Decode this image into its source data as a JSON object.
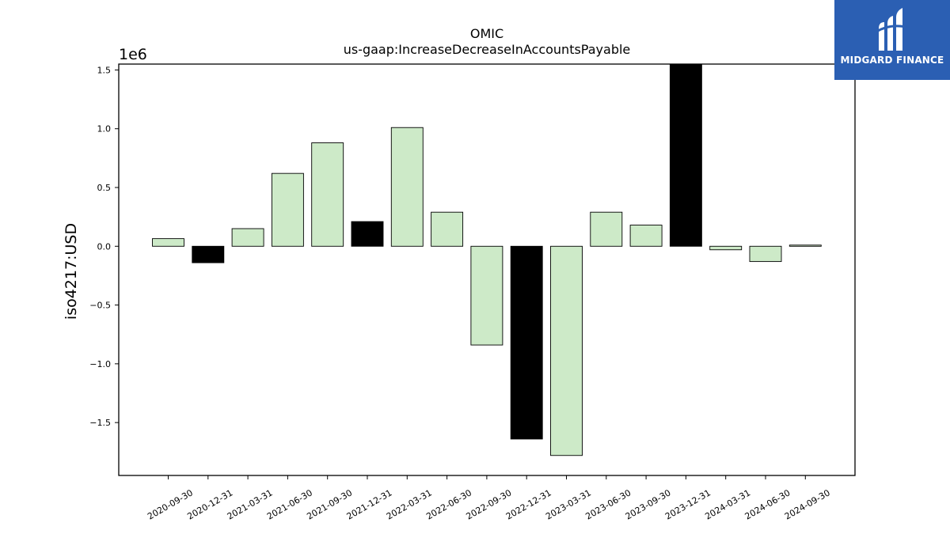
{
  "chart_data": {
    "type": "bar",
    "title": "OMIC",
    "subtitle": "us-gaap:IncreaseDecreaseInAccountsPayable",
    "ylabel": "iso4217:USD",
    "xlabel": "",
    "offset_label": "1e6",
    "ylim": [
      -1.95,
      1.55
    ],
    "yticks": [
      -1.5,
      -1.0,
      -0.5,
      0.0,
      0.5,
      1.0,
      1.5
    ],
    "ytick_labels": [
      "−1.5",
      "−1.0",
      "−0.5",
      "0.0",
      "0.5",
      "1.0",
      "1.5"
    ],
    "categories": [
      "2020-09-30",
      "2020-12-31",
      "2021-03-31",
      "2021-06-30",
      "2021-09-30",
      "2021-12-31",
      "2022-03-31",
      "2022-06-30",
      "2022-09-30",
      "2022-12-31",
      "2023-03-31",
      "2023-06-30",
      "2023-09-30",
      "2023-12-31",
      "2024-03-31",
      "2024-06-30",
      "2024-09-30"
    ],
    "values": [
      0.065,
      -0.14,
      0.15,
      0.62,
      0.88,
      0.21,
      1.01,
      0.29,
      -0.84,
      -1.64,
      -1.78,
      0.29,
      0.18,
      1.55,
      -0.03,
      -0.13,
      0.01
    ],
    "bar_colors": [
      "#cdeac8",
      "#000000",
      "#cdeac8",
      "#cdeac8",
      "#cdeac8",
      "#000000",
      "#cdeac8",
      "#cdeac8",
      "#cdeac8",
      "#000000",
      "#cdeac8",
      "#cdeac8",
      "#cdeac8",
      "#000000",
      "#cdeac8",
      "#cdeac8",
      "#cdeac8"
    ],
    "grid": false
  },
  "logo": {
    "text": "MIDGARD FINANCE",
    "bg_color": "#2b5fb3"
  }
}
